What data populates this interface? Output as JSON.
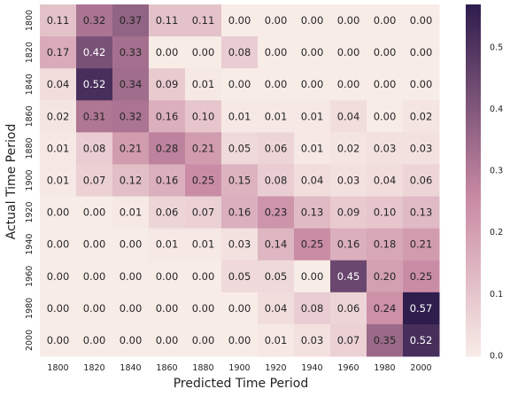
{
  "chart_data": {
    "type": "heatmap",
    "title": "",
    "xlabel": "Predicted Time Period",
    "ylabel": "Actual Time Period",
    "x_categories": [
      "1800",
      "1820",
      "1840",
      "1860",
      "1880",
      "1900",
      "1920",
      "1940",
      "1960",
      "1980",
      "2000"
    ],
    "y_categories": [
      "1800",
      "1820",
      "1840",
      "1860",
      "1880",
      "1900",
      "1920",
      "1940",
      "1960",
      "1980",
      "2000"
    ],
    "values": [
      [
        0.11,
        0.32,
        0.37,
        0.11,
        0.11,
        0.0,
        0.0,
        0.0,
        0.0,
        0.0,
        0.0
      ],
      [
        0.17,
        0.42,
        0.33,
        0.0,
        0.0,
        0.08,
        0.0,
        0.0,
        0.0,
        0.0,
        0.0
      ],
      [
        0.04,
        0.52,
        0.34,
        0.09,
        0.01,
        0.0,
        0.0,
        0.0,
        0.0,
        0.0,
        0.0
      ],
      [
        0.02,
        0.31,
        0.32,
        0.16,
        0.1,
        0.01,
        0.01,
        0.01,
        0.04,
        0.0,
        0.02
      ],
      [
        0.01,
        0.08,
        0.21,
        0.28,
        0.21,
        0.05,
        0.06,
        0.01,
        0.02,
        0.03,
        0.03
      ],
      [
        0.01,
        0.07,
        0.12,
        0.16,
        0.25,
        0.15,
        0.08,
        0.04,
        0.03,
        0.04,
        0.06
      ],
      [
        0.0,
        0.0,
        0.01,
        0.06,
        0.07,
        0.16,
        0.23,
        0.13,
        0.09,
        0.1,
        0.13
      ],
      [
        0.0,
        0.0,
        0.0,
        0.01,
        0.01,
        0.03,
        0.14,
        0.25,
        0.16,
        0.18,
        0.21
      ],
      [
        0.0,
        0.0,
        0.0,
        0.0,
        0.0,
        0.05,
        0.05,
        0.0,
        0.45,
        0.2,
        0.25
      ],
      [
        0.0,
        0.0,
        0.0,
        0.0,
        0.0,
        0.0,
        0.04,
        0.08,
        0.06,
        0.24,
        0.57
      ],
      [
        0.0,
        0.0,
        0.0,
        0.0,
        0.0,
        0.0,
        0.01,
        0.03,
        0.07,
        0.35,
        0.52
      ]
    ],
    "value_format": "2 decimals",
    "colorbar": {
      "range": [
        0,
        0.57
      ],
      "ticks": [
        "0.0",
        "0.1",
        "0.2",
        "0.3",
        "0.4",
        "0.5"
      ],
      "tick_values": [
        0.0,
        0.1,
        0.2,
        0.3,
        0.4,
        0.5
      ]
    },
    "colormap": {
      "low": "#f8ece7",
      "mid": "#c98aa3",
      "high": "#2e1d4d"
    },
    "grid": false,
    "legend": "colorbar-right"
  }
}
